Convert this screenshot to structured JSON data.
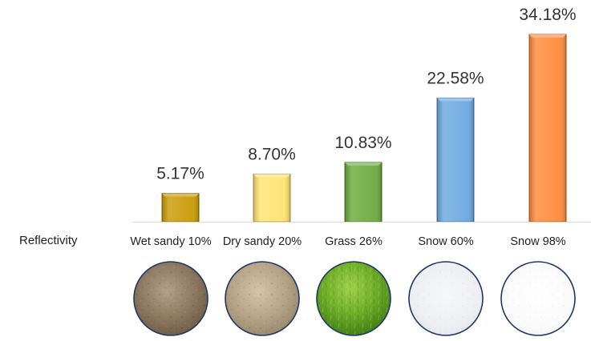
{
  "chart_data": {
    "type": "bar",
    "categories": [
      "Wet sandy 10%",
      "Dry sandy 20%",
      "Grass 26%",
      "Snow 60%",
      "Snow 98%"
    ],
    "values": [
      5.17,
      8.7,
      10.83,
      22.58,
      34.18
    ],
    "data_labels": [
      "5.17%",
      "8.70%",
      "10.83%",
      "22.58%",
      "34.18%"
    ],
    "ylim": [
      0,
      34.18
    ],
    "row_label": "Reflectivity",
    "colors": [
      "#C99A05",
      "#FFE36F",
      "#6BAA3C",
      "#6BA8DF",
      "#FF8A3A"
    ],
    "swatches": [
      "wet-sand-texture",
      "dry-sand-texture",
      "grass-texture",
      "snow-texture",
      "snow-texture"
    ],
    "grid": false,
    "legend": "none"
  }
}
